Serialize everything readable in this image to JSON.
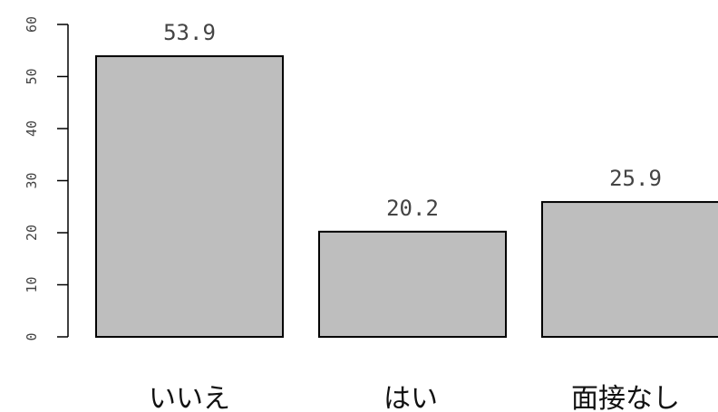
{
  "chart_data": {
    "type": "bar",
    "title": "",
    "xlabel": "",
    "ylabel": "",
    "categories": [
      "いいえ",
      "はい",
      "面接なし"
    ],
    "values": [
      53.9,
      20.2,
      25.9
    ],
    "data_labels": [
      "53.9",
      "20.2",
      "25.9"
    ],
    "ylim": [
      0,
      60
    ],
    "yticks": [
      0,
      10,
      20,
      30,
      40,
      50,
      60
    ],
    "ytick_labels": [
      "0",
      "10",
      "20",
      "30",
      "40",
      "50",
      "60"
    ],
    "grid": false,
    "bar_color": "#bebebe",
    "bar_edge_color": "#000000"
  }
}
